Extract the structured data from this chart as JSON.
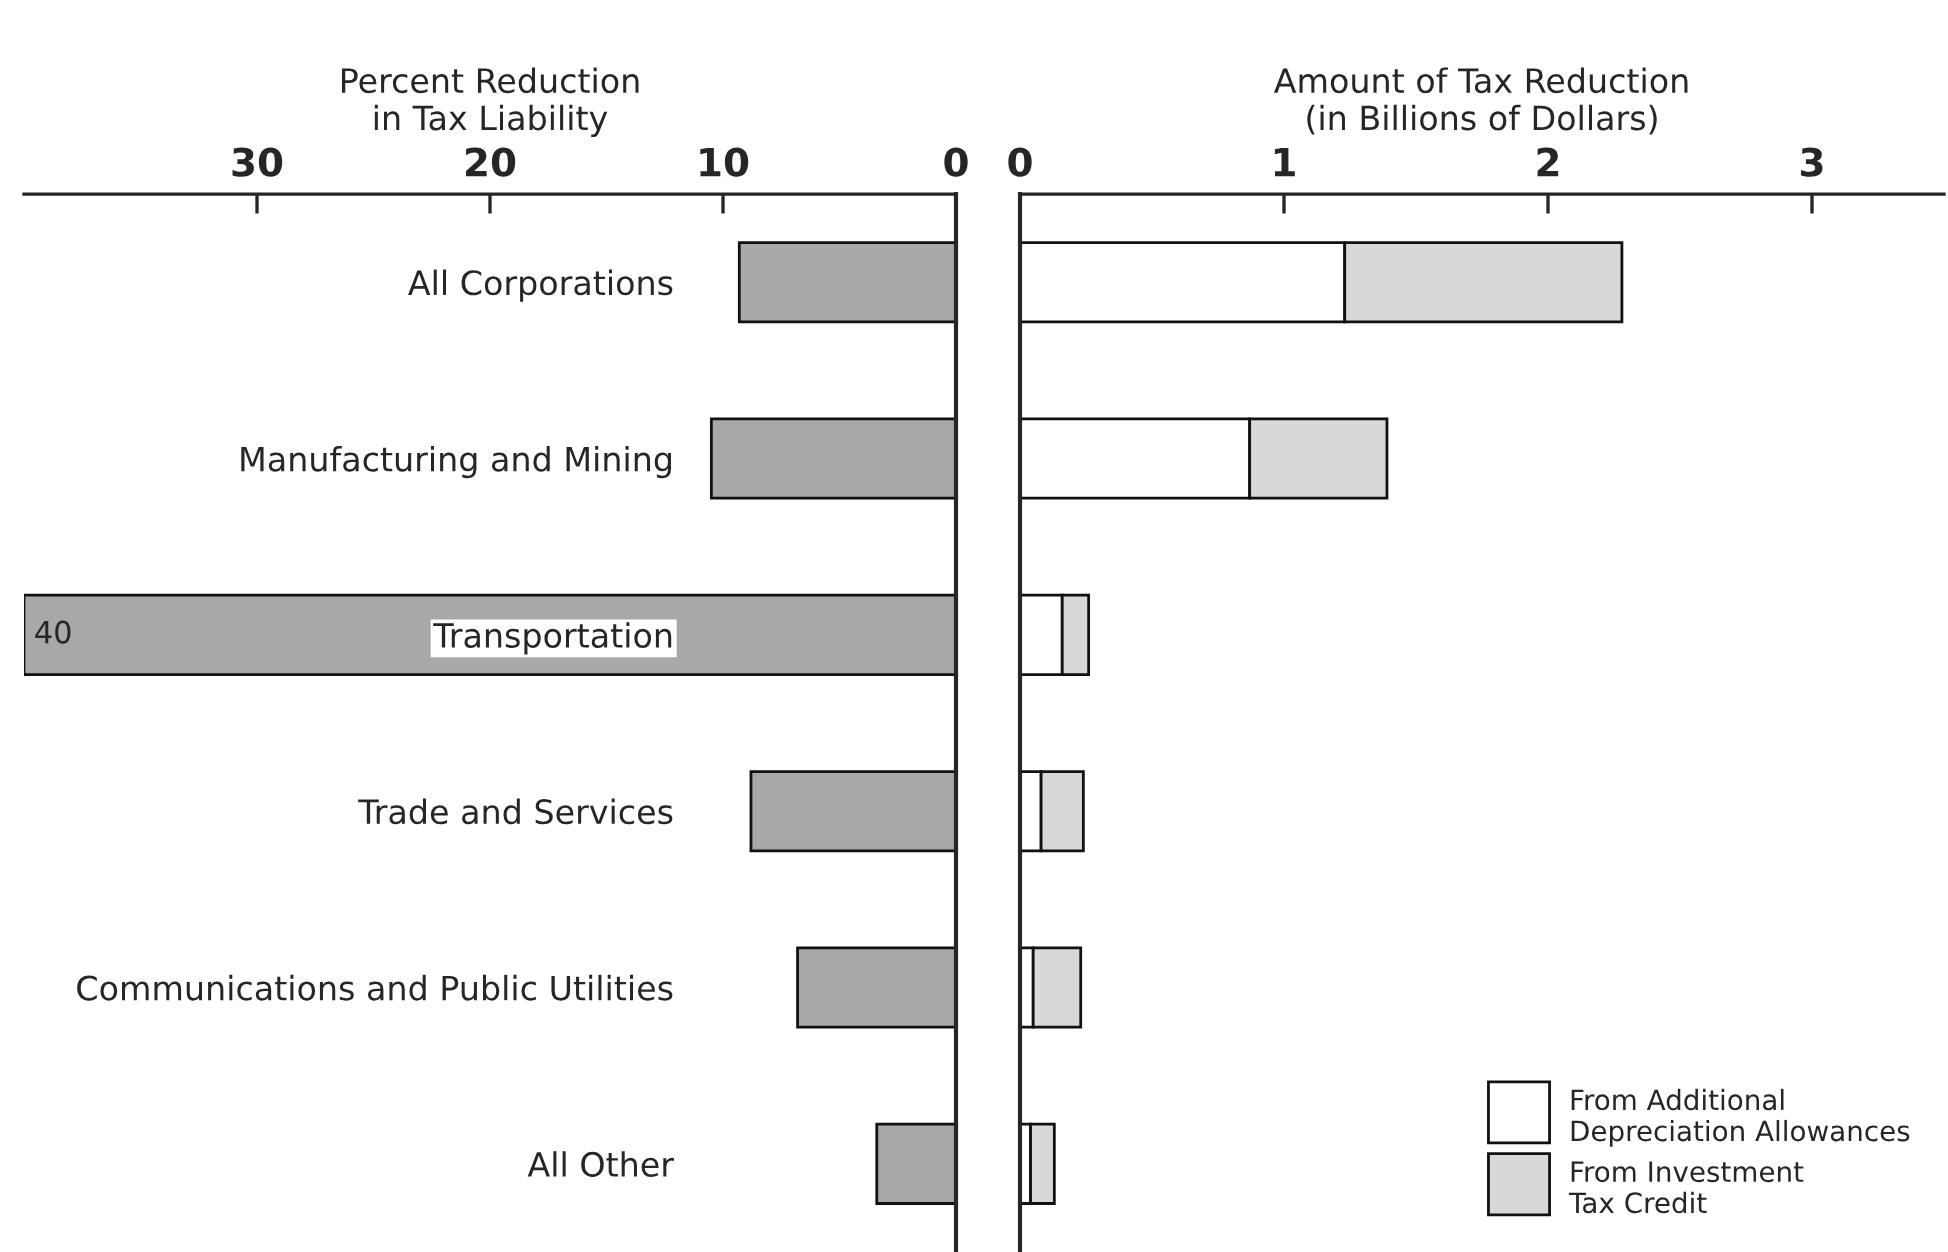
{
  "chart_data": [
    {
      "type": "bar",
      "orientation": "horizontal",
      "xlabel": "Percent Reduction\nin Tax Liability",
      "categories": [
        "All Corporations",
        "Manufacturing and Mining",
        "Transportation",
        "Trade and Services",
        "Communications and Public Utilities",
        "All Other"
      ],
      "series": [
        {
          "color": "#a8a8a8",
          "values": [
            9.3,
            10.5,
            40,
            8.8,
            6.8,
            3.4
          ],
          "value_labels": [
            null,
            null,
            "40",
            null,
            null,
            null
          ]
        }
      ],
      "xlim": [
        40,
        0
      ],
      "xticks": [
        30,
        20,
        10,
        0
      ],
      "tick_labels": "x",
      "grid": false,
      "legend": false
    },
    {
      "type": "bar",
      "orientation": "horizontal",
      "stacked": true,
      "xlabel": "Amount of Tax Reduction\n(in Billions of Dollars)",
      "categories": [
        null,
        null,
        null,
        null,
        null,
        null
      ],
      "series": [
        {
          "name": "From Additional\nDepreciation Allowances",
          "color": "#ffffff",
          "values": [
            1.23,
            0.87,
            0.16,
            0.08,
            0.05,
            0.04
          ]
        },
        {
          "name": "From Investment\nTax Credit",
          "color": "#d8d8d8",
          "values": [
            1.05,
            0.52,
            0.1,
            0.16,
            0.18,
            0.09
          ]
        }
      ],
      "xlim": [
        0,
        3.5
      ],
      "xticks": [
        0,
        1,
        2,
        3
      ],
      "tick_labels": "x",
      "grid": false,
      "legend": "bottom right"
    }
  ]
}
